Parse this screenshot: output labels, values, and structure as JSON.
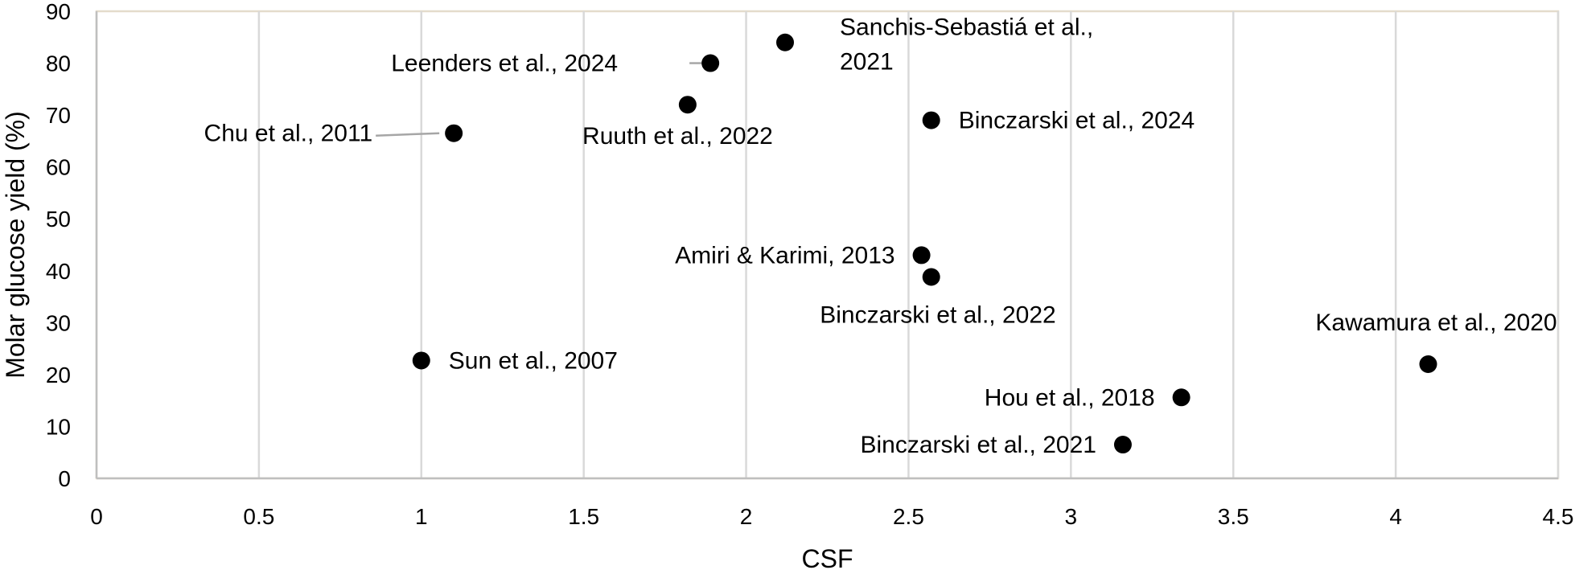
{
  "chart_data": {
    "type": "scatter",
    "title": "",
    "xlabel": "CSF",
    "ylabel": "Molar glucose yield (%)",
    "xlim": [
      0,
      4.5
    ],
    "ylim": [
      0,
      90
    ],
    "x_ticks": [
      "0",
      "0.5",
      "1",
      "1.5",
      "2",
      "2.5",
      "3",
      "3.5",
      "4",
      "4.5"
    ],
    "y_ticks": [
      "0",
      "10",
      "20",
      "30",
      "40",
      "50",
      "60",
      "70",
      "80",
      "90"
    ],
    "grid": "vertical",
    "marker_color": "#000000",
    "points": [
      {
        "x": 1.0,
        "y": 22.7,
        "label_lines": [
          "Sun et al., 2007"
        ]
      },
      {
        "x": 1.1,
        "y": 66.5,
        "label_lines": [
          "Chu et al., 2011"
        ]
      },
      {
        "x": 1.82,
        "y": 72.0,
        "label_lines": [
          "Ruuth et al., 2022"
        ]
      },
      {
        "x": 1.89,
        "y": 80.0,
        "label_lines": [
          "Leenders et al., 2024"
        ]
      },
      {
        "x": 2.12,
        "y": 84.0,
        "label_lines": [
          "Sanchis-Sebastiá et al.,",
          "2021"
        ]
      },
      {
        "x": 2.54,
        "y": 43.0,
        "label_lines": [
          "Amiri & Karimi, 2013"
        ]
      },
      {
        "x": 2.57,
        "y": 38.8,
        "label_lines": [
          "Binczarski et al., 2022"
        ]
      },
      {
        "x": 2.57,
        "y": 69.0,
        "label_lines": [
          "Binczarski et al., 2024"
        ]
      },
      {
        "x": 3.16,
        "y": 6.5,
        "label_lines": [
          "Binczarski et al., 2021"
        ]
      },
      {
        "x": 3.34,
        "y": 15.6,
        "label_lines": [
          "Hou et al., 2018"
        ]
      },
      {
        "x": 4.1,
        "y": 22.0,
        "label_lines": [
          "Kawamura et al., 2020"
        ]
      }
    ]
  }
}
